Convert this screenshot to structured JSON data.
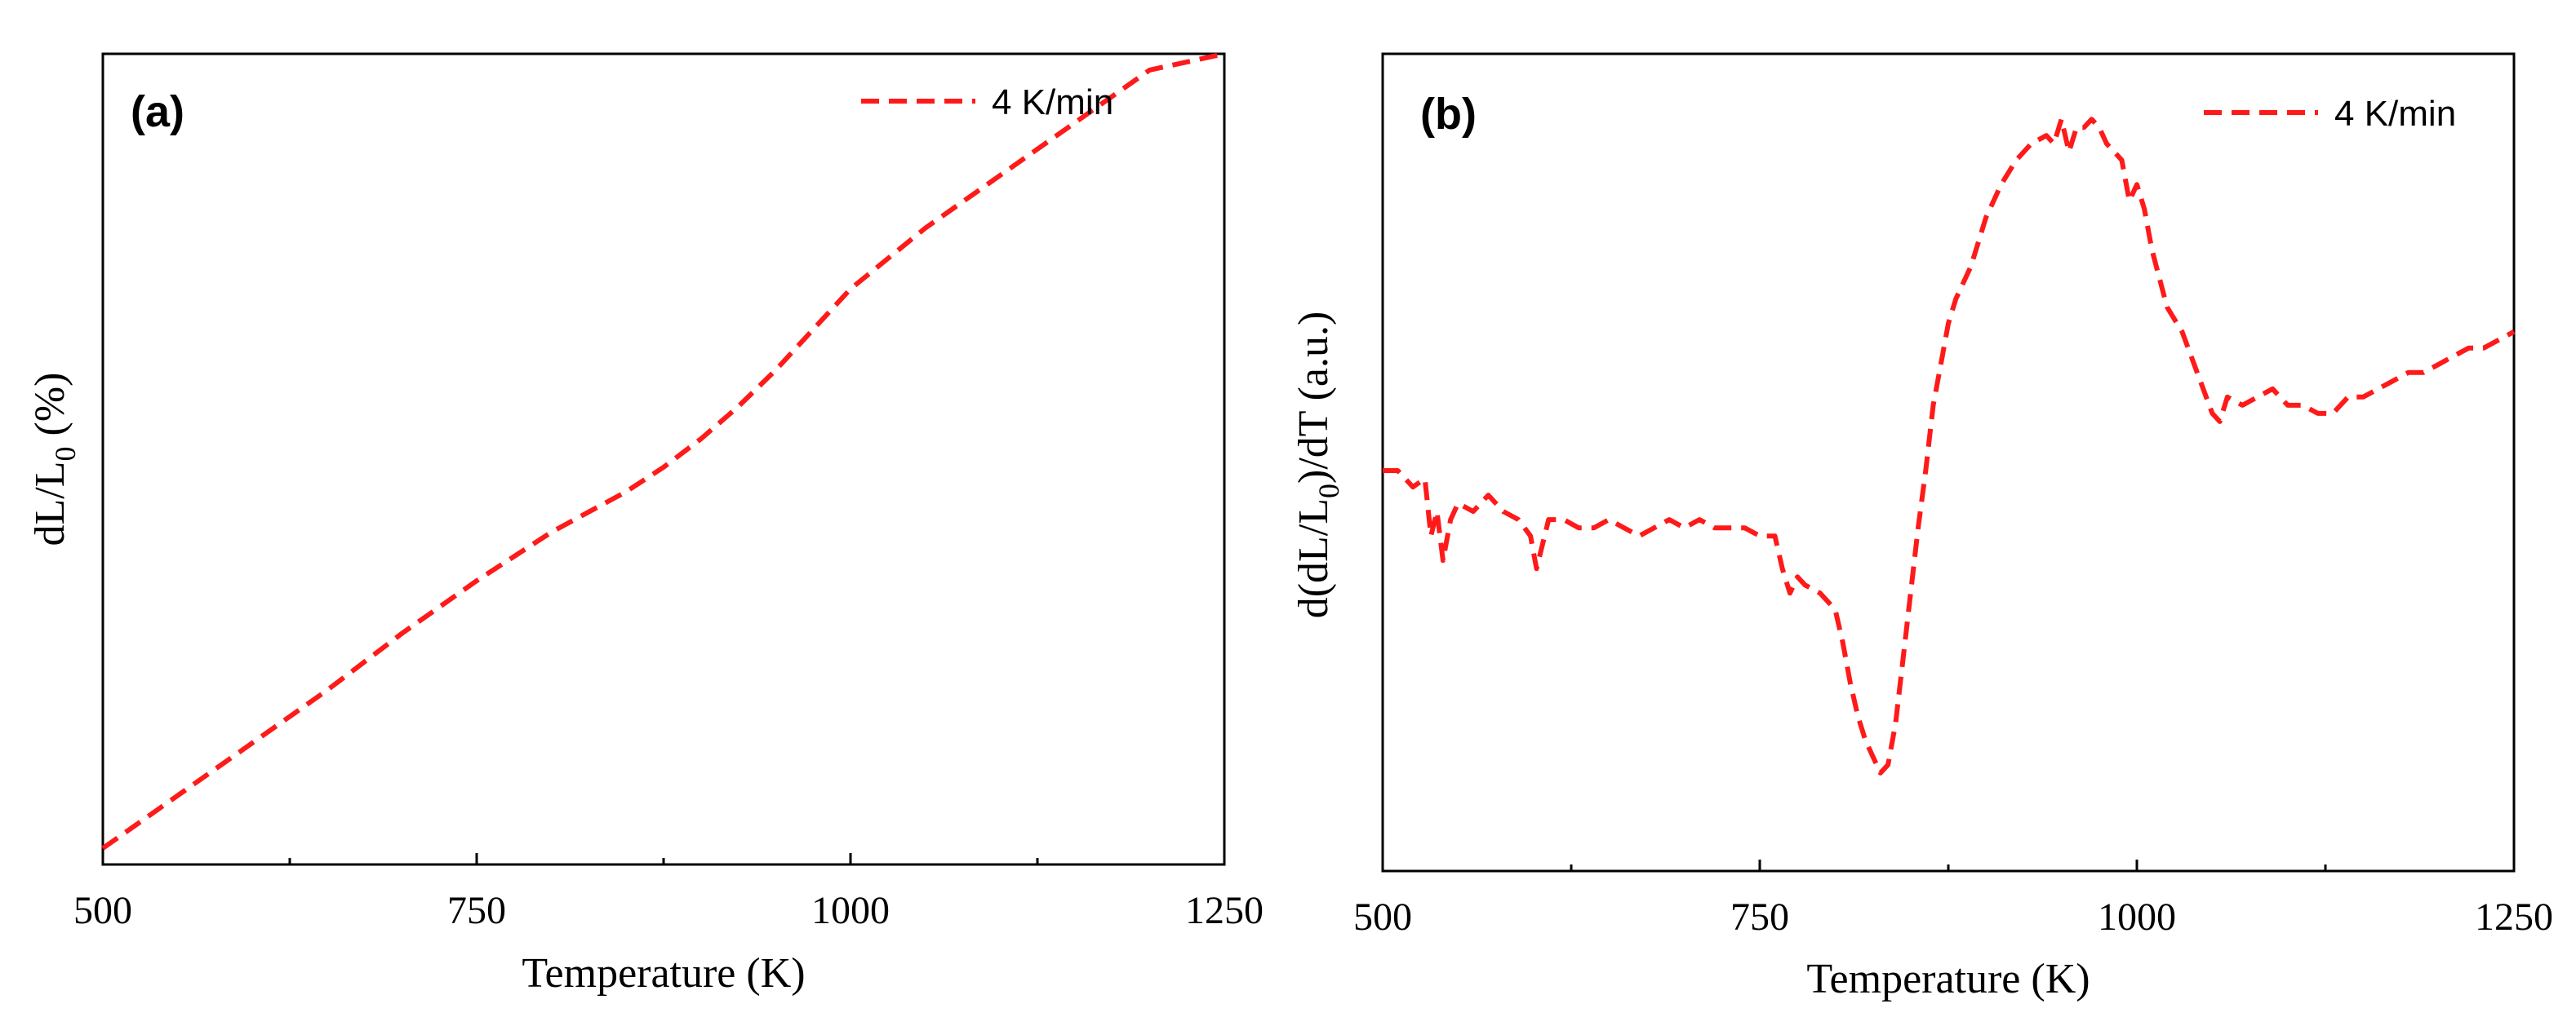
{
  "colors": {
    "series": "#ff1a1a",
    "axis": "#000000",
    "background": "#ffffff"
  },
  "chart_data": [
    {
      "type": "line",
      "panel_label": "(a)",
      "title": "",
      "xlabel": "Temperature (K)",
      "ylabel": {
        "base": "dL/L",
        "subscript": "0",
        "suffix": " (%)"
      },
      "xlim": [
        500,
        1250
      ],
      "ylim": [
        0,
        100
      ],
      "x_ticks": [
        500,
        750,
        1000,
        1250
      ],
      "x_tick_labels": [
        "500",
        "750",
        "1000",
        "1250"
      ],
      "minor_x_ticks": [
        625,
        875,
        1125
      ],
      "y_ticks_shown": false,
      "legend": {
        "position": "top-right",
        "entries": [
          "4 K/min"
        ]
      },
      "series": [
        {
          "name": "4 K/min",
          "x": [
            500,
            550,
            600,
            650,
            700,
            750,
            800,
            850,
            875,
            900,
            925,
            950,
            975,
            1000,
            1050,
            1100,
            1150,
            1200,
            1250
          ],
          "y": [
            2.0,
            8.5,
            15.0,
            21.5,
            28.5,
            35.0,
            41.0,
            46.0,
            49.0,
            52.5,
            56.5,
            61.0,
            66.0,
            71.0,
            78.5,
            85.0,
            91.5,
            98.0,
            104.5
          ]
        }
      ]
    },
    {
      "type": "line",
      "panel_label": "(b)",
      "title": "",
      "xlabel": "Temperature (K)",
      "ylabel": {
        "prefix": "d(dL/L",
        "subscript": "0",
        "suffix": ")/dT (a.u.)"
      },
      "xlim": [
        500,
        1250
      ],
      "ylim": [
        0,
        100
      ],
      "x_ticks": [
        500,
        750,
        1000,
        1250
      ],
      "x_tick_labels": [
        "500",
        "750",
        "1000",
        "1250"
      ],
      "minor_x_ticks": [
        625,
        875,
        1125
      ],
      "y_ticks_shown": false,
      "legend": {
        "position": "top-right",
        "entries": [
          "4 K/min"
        ]
      },
      "series": [
        {
          "name": "4 K/min",
          "x": [
            500,
            510,
            520,
            528,
            532,
            536,
            540,
            545,
            550,
            560,
            570,
            580,
            590,
            598,
            602,
            610,
            620,
            630,
            640,
            650,
            660,
            670,
            680,
            690,
            700,
            710,
            720,
            730,
            740,
            750,
            760,
            765,
            770,
            775,
            780,
            790,
            800,
            805,
            810,
            815,
            820,
            825,
            830,
            835,
            840,
            845,
            850,
            855,
            860,
            865,
            870,
            875,
            880,
            890,
            900,
            910,
            920,
            930,
            940,
            945,
            950,
            955,
            960,
            965,
            970,
            975,
            980,
            985,
            990,
            995,
            1000,
            1005,
            1010,
            1020,
            1030,
            1040,
            1050,
            1055,
            1060,
            1070,
            1080,
            1090,
            1100,
            1110,
            1120,
            1130,
            1140,
            1150,
            1160,
            1170,
            1180,
            1190,
            1200,
            1210,
            1220,
            1230,
            1240,
            1250
          ],
          "y": [
            49,
            49,
            47,
            48,
            41,
            44,
            38,
            43,
            45,
            44,
            46,
            44,
            43,
            41,
            37,
            43,
            43,
            42,
            42,
            43,
            42,
            41,
            42,
            43,
            42,
            43,
            42,
            42,
            42,
            41,
            41,
            37,
            34,
            36,
            35,
            34,
            32,
            28,
            23,
            19,
            16,
            14,
            12,
            13,
            18,
            26,
            34,
            42,
            49,
            57,
            62,
            67,
            70,
            74,
            80,
            84,
            87,
            89,
            90,
            89,
            92,
            88,
            91,
            91,
            92,
            91,
            89,
            88,
            87,
            82,
            84,
            81,
            76,
            69,
            66,
            61,
            56,
            55,
            58,
            57,
            58,
            59,
            57,
            57,
            56,
            56,
            58,
            58,
            59,
            60,
            61,
            61,
            62,
            63,
            64,
            64,
            65,
            66
          ]
        }
      ]
    }
  ]
}
